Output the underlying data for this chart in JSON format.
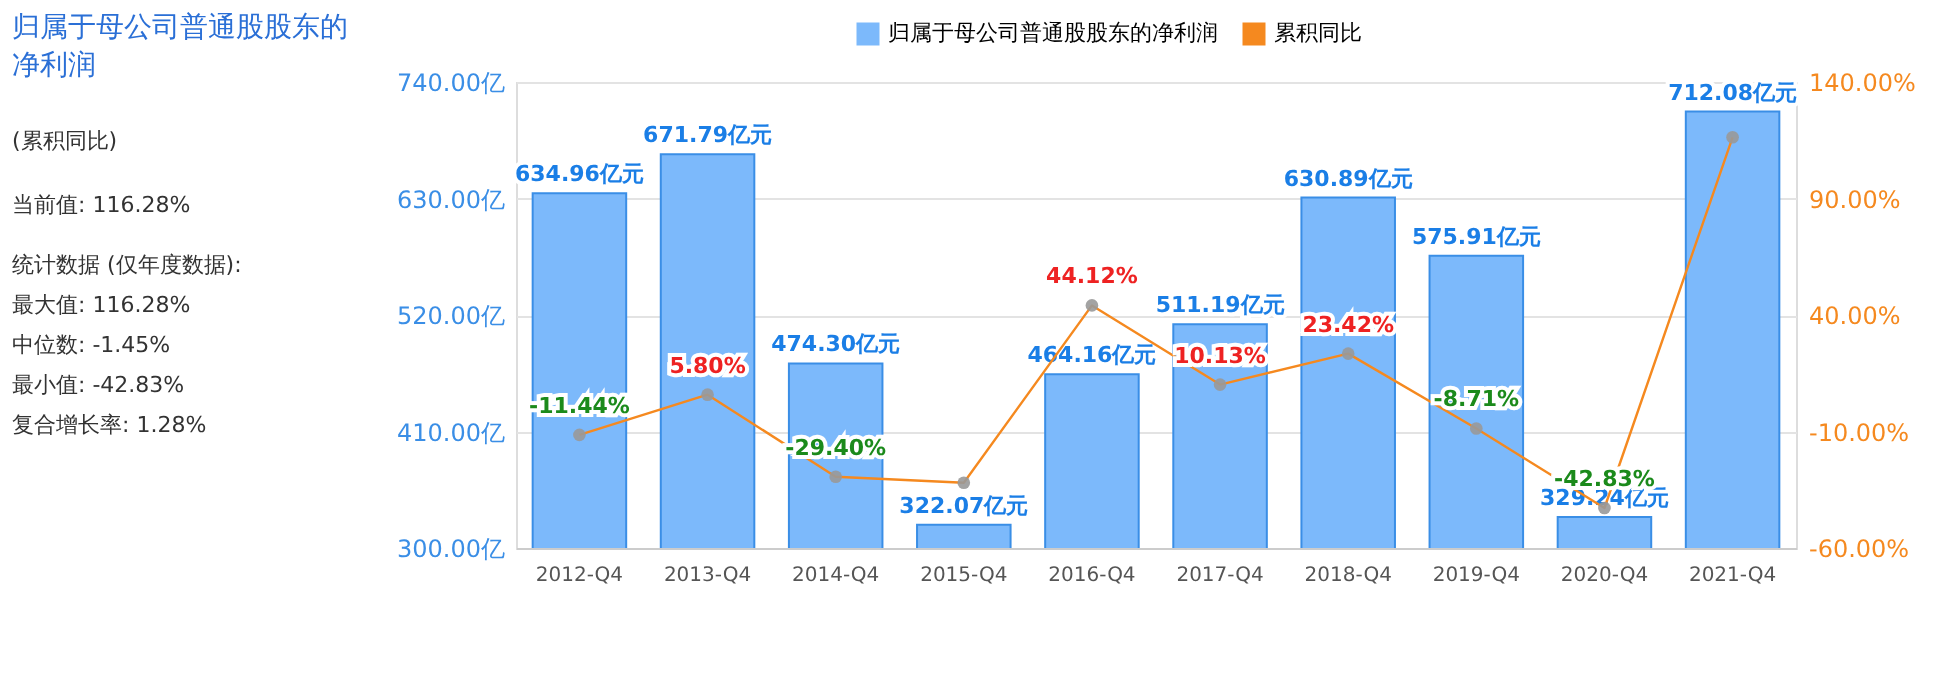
{
  "chart_data": {
    "type": "bar",
    "title": "归属于母公司普通股股东的净利润",
    "categories": [
      "2012-Q4",
      "2013-Q4",
      "2014-Q4",
      "2015-Q4",
      "2016-Q4",
      "2017-Q4",
      "2018-Q4",
      "2019-Q4",
      "2020-Q4",
      "2021-Q4"
    ],
    "series": [
      {
        "name": "归属于母公司普通股股东的净利润",
        "color": "#7cb9fb",
        "values": [
          634.96,
          671.79,
          474.3,
          322.07,
          464.16,
          511.19,
          630.89,
          575.91,
          329.24,
          712.08
        ],
        "value_labels": [
          "634.96亿元",
          "671.79亿元",
          "474.30亿元",
          "322.07亿元",
          "464.16亿元",
          "511.19亿元",
          "630.89亿元",
          "575.91亿元",
          "329.24亿元",
          "712.08亿元"
        ]
      },
      {
        "name": "累积同比",
        "type": "line",
        "axis": "y2",
        "color": "#f5891f",
        "values": [
          -11.44,
          5.8,
          -29.4,
          -32,
          44.12,
          10.13,
          23.42,
          -8.71,
          -42.83,
          116.28
        ],
        "value_labels": [
          "-11.44%",
          "5.80%",
          "-29.40%",
          null,
          "44.12%",
          "10.13%",
          "23.42%",
          "-8.71%",
          "-42.83%",
          null
        ]
      }
    ],
    "ylim": [
      300,
      740
    ],
    "yticks": [
      {
        "value": 300,
        "label": "300.00亿"
      },
      {
        "value": 410,
        "label": "410.00亿"
      },
      {
        "value": 520,
        "label": "520.00亿"
      },
      {
        "value": 630,
        "label": "630.00亿"
      },
      {
        "value": 740,
        "label": "740.00亿"
      }
    ],
    "y2lim": [
      -60,
      140
    ],
    "y2ticks": [
      {
        "value": -60,
        "label": "-60.00%"
      },
      {
        "value": -10,
        "label": "-10.00%"
      },
      {
        "value": 40,
        "label": "40.00%"
      },
      {
        "value": 90,
        "label": "90.00%"
      },
      {
        "value": 140,
        "label": "140.00%"
      }
    ],
    "annotations": [
      "(累积同比)",
      "当前值:  116.28%",
      "统计数据 (仅年度数据):",
      "最大值:  116.28%",
      "中位数:  -1.45%",
      "最小值:  -42.83%",
      "复合增长率:  1.28%"
    ],
    "grid": "y",
    "legend": "top",
    "marker": "circle",
    "line_style": "solid"
  }
}
